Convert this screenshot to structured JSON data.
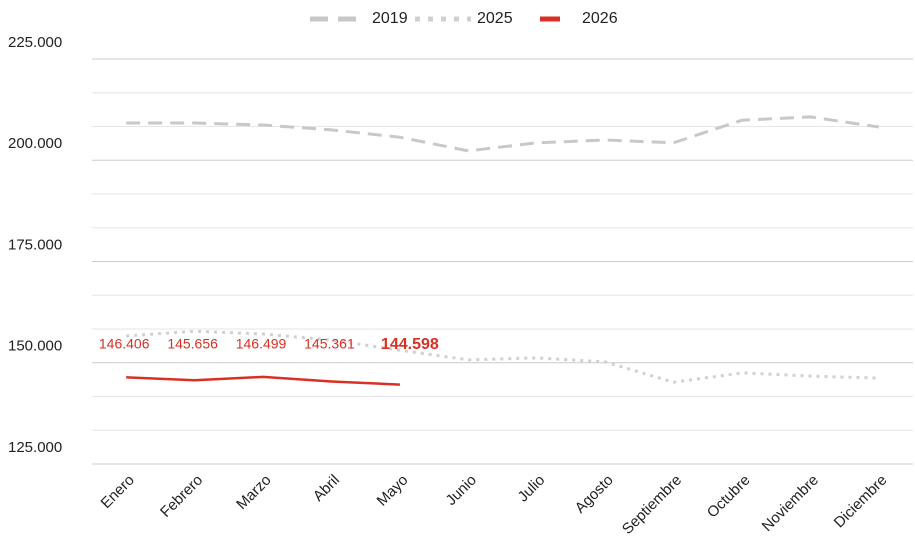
{
  "chart_data": {
    "type": "line",
    "categories": [
      "Enero",
      "Febrero",
      "Marzo",
      "Abril",
      "Mayo",
      "Junio",
      "Julio",
      "Agosto",
      "Septiembre",
      "Octubre",
      "Noviembre",
      "Diciembre"
    ],
    "series": [
      {
        "name": "2019",
        "color": "#c8c8c8",
        "dash": "dashed",
        "values": [
          209200,
          209200,
          208700,
          207500,
          205700,
          202300,
          204300,
          205000,
          204300,
          209900,
          210700,
          208200
        ]
      },
      {
        "name": "2025",
        "color": "#d0d0d0",
        "dash": "dotted",
        "values": [
          156600,
          157800,
          157100,
          155600,
          153100,
          150700,
          151200,
          150200,
          145200,
          147500,
          146700,
          146200
        ]
      },
      {
        "name": "2026",
        "color": "#d93025",
        "dash": "solid",
        "values": [
          146406,
          145656,
          146499,
          145361,
          144598,
          null,
          null,
          null,
          null,
          null,
          null,
          null
        ],
        "value_labels": [
          "146.406",
          "145.656",
          "146.499",
          "145.361",
          "144.598",
          null,
          null,
          null,
          null,
          null,
          null,
          null
        ]
      }
    ],
    "ylim": [
      125000,
      225000
    ],
    "yticks": [
      {
        "value": 225000,
        "label": "225.000"
      },
      {
        "value": 200000,
        "label": "200.000"
      },
      {
        "value": 175000,
        "label": "175.000"
      },
      {
        "value": 150000,
        "label": "150.000"
      },
      {
        "value": 125000,
        "label": "125.000"
      }
    ],
    "grid": true,
    "minor_grid_divisions": 3,
    "legend": "top"
  }
}
